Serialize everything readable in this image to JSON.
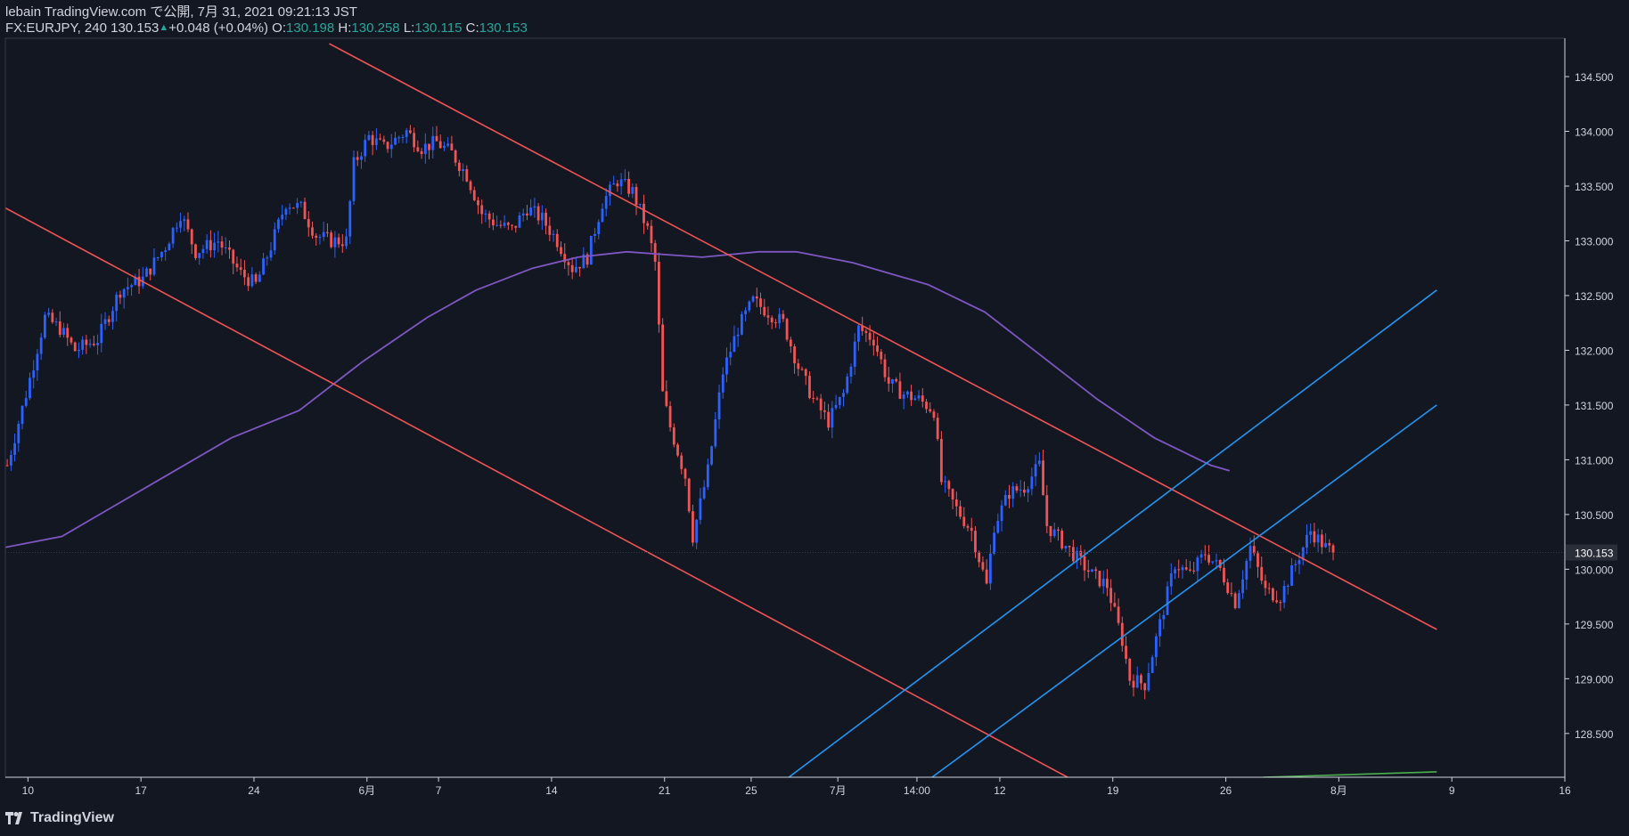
{
  "header": {
    "line1": "lebain TradingView.com で公開, 7月 31, 2021 09:21:13 JST",
    "symbol": "FX:EURJPY, 240",
    "last": "130.153",
    "change": "+0.048 (+0.04%)",
    "o_label": "O:",
    "o_value": "130.198",
    "h_label": "H:",
    "h_value": "130.258",
    "l_label": "L:",
    "l_value": "130.115",
    "c_label": "C:",
    "c_value": "130.153"
  },
  "brand": {
    "name": "TradingView",
    "logo_icon": "tradingview-logo-icon"
  },
  "colors": {
    "background": "#131722",
    "up_candle": "#2962ff",
    "down_candle": "#f05454",
    "grid": "#2a2e39",
    "axis_text": "#d1d4dc",
    "ma": "#7e57c2",
    "red_line": "#f05454",
    "blue_line": "#2196f3",
    "green_line": "#4caf50"
  },
  "chart_data": {
    "type": "candlestick",
    "title": "FX:EURJPY, 240",
    "ylim": [
      128.1,
      134.85
    ],
    "y_ticks": [
      128.5,
      129.0,
      129.5,
      130.0,
      130.5,
      131.0,
      131.5,
      132.0,
      132.5,
      133.0,
      133.5,
      134.0,
      134.5
    ],
    "y_tick_labels": [
      "128.500",
      "129.000",
      "129.500",
      "130.000",
      "130.500",
      "131.000",
      "131.500",
      "132.000",
      "132.500",
      "133.000",
      "133.500",
      "134.000",
      "134.500"
    ],
    "x_ticks": [
      {
        "label": "10",
        "bar": 6
      },
      {
        "label": "17",
        "bar": 36
      },
      {
        "label": "24",
        "bar": 66
      },
      {
        "label": "6月",
        "bar": 96
      },
      {
        "label": "7",
        "bar": 115
      },
      {
        "label": "14",
        "bar": 145
      },
      {
        "label": "21",
        "bar": 175
      },
      {
        "label": "25",
        "bar": 198
      },
      {
        "label": "7月",
        "bar": 221
      },
      {
        "label": "14:00",
        "bar": 242
      },
      {
        "label": "12",
        "bar": 264
      },
      {
        "label": "19",
        "bar": 294
      },
      {
        "label": "26",
        "bar": 324
      },
      {
        "label": "8月",
        "bar": 354
      },
      {
        "label": "9",
        "bar": 384
      },
      {
        "label": "16",
        "bar": 414
      }
    ],
    "last_price": 130.153,
    "last_price_label": "130.153",
    "price_path": [
      [
        0,
        130.95
      ],
      [
        5,
        131.6
      ],
      [
        10,
        132.3
      ],
      [
        14,
        132.2
      ],
      [
        18,
        132.0
      ],
      [
        24,
        132.1
      ],
      [
        30,
        132.55
      ],
      [
        36,
        132.65
      ],
      [
        42,
        132.95
      ],
      [
        46,
        133.25
      ],
      [
        50,
        132.9
      ],
      [
        56,
        133.0
      ],
      [
        62,
        132.7
      ],
      [
        66,
        132.6
      ],
      [
        70,
        132.95
      ],
      [
        74,
        133.35
      ],
      [
        78,
        133.3
      ],
      [
        82,
        133.05
      ],
      [
        86,
        133.0
      ],
      [
        90,
        133.0
      ],
      [
        92,
        133.7
      ],
      [
        96,
        133.95
      ],
      [
        100,
        133.85
      ],
      [
        106,
        134.0
      ],
      [
        110,
        133.85
      ],
      [
        114,
        133.9
      ],
      [
        118,
        133.8
      ],
      [
        122,
        133.6
      ],
      [
        126,
        133.25
      ],
      [
        130,
        133.15
      ],
      [
        134,
        133.1
      ],
      [
        138,
        133.3
      ],
      [
        142,
        133.2
      ],
      [
        146,
        133.0
      ],
      [
        150,
        132.75
      ],
      [
        154,
        132.85
      ],
      [
        158,
        133.35
      ],
      [
        162,
        133.55
      ],
      [
        166,
        133.45
      ],
      [
        170,
        133.1
      ],
      [
        172,
        132.8
      ],
      [
        174,
        131.6
      ],
      [
        176,
        131.3
      ],
      [
        180,
        130.85
      ],
      [
        182,
        130.3
      ],
      [
        186,
        130.9
      ],
      [
        190,
        131.8
      ],
      [
        194,
        132.2
      ],
      [
        198,
        132.45
      ],
      [
        202,
        132.35
      ],
      [
        206,
        132.25
      ],
      [
        210,
        131.85
      ],
      [
        214,
        131.55
      ],
      [
        218,
        131.35
      ],
      [
        222,
        131.6
      ],
      [
        226,
        132.2
      ],
      [
        230,
        132.1
      ],
      [
        234,
        131.7
      ],
      [
        238,
        131.6
      ],
      [
        242,
        131.55
      ],
      [
        246,
        131.45
      ],
      [
        248,
        130.8
      ],
      [
        252,
        130.55
      ],
      [
        256,
        130.35
      ],
      [
        260,
        129.85
      ],
      [
        262,
        130.4
      ],
      [
        266,
        130.7
      ],
      [
        270,
        130.75
      ],
      [
        274,
        130.95
      ],
      [
        276,
        130.4
      ],
      [
        280,
        130.25
      ],
      [
        284,
        130.1
      ],
      [
        288,
        129.95
      ],
      [
        292,
        129.85
      ],
      [
        296,
        129.35
      ],
      [
        298,
        129.0
      ],
      [
        302,
        128.95
      ],
      [
        306,
        129.5
      ],
      [
        310,
        130.05
      ],
      [
        314,
        129.95
      ],
      [
        318,
        130.15
      ],
      [
        322,
        130.0
      ],
      [
        326,
        129.7
      ],
      [
        330,
        130.2
      ],
      [
        334,
        129.8
      ],
      [
        338,
        129.75
      ],
      [
        342,
        130.05
      ],
      [
        346,
        130.35
      ],
      [
        350,
        130.2
      ],
      [
        352,
        130.15
      ]
    ],
    "series": [
      {
        "name": "MA",
        "type": "line",
        "points": [
          [
            0,
            130.2
          ],
          [
            15,
            130.3
          ],
          [
            30,
            130.6
          ],
          [
            45,
            130.9
          ],
          [
            60,
            131.2
          ],
          [
            78,
            131.45
          ],
          [
            95,
            131.9
          ],
          [
            112,
            132.3
          ],
          [
            125,
            132.55
          ],
          [
            140,
            132.75
          ],
          [
            152,
            132.85
          ],
          [
            165,
            132.9
          ],
          [
            185,
            132.85
          ],
          [
            200,
            132.9
          ],
          [
            210,
            132.9
          ],
          [
            225,
            132.8
          ],
          [
            245,
            132.6
          ],
          [
            260,
            132.35
          ],
          [
            275,
            131.95
          ],
          [
            290,
            131.55
          ],
          [
            305,
            131.2
          ],
          [
            320,
            130.95
          ],
          [
            325,
            130.9
          ]
        ]
      },
      {
        "name": "Upper downtrend",
        "type": "trendline",
        "points": [
          [
            86,
            134.8
          ],
          [
            380,
            129.45
          ]
        ]
      },
      {
        "name": "Lower downtrend",
        "type": "trendline",
        "points": [
          [
            0,
            133.3
          ],
          [
            282,
            128.1
          ]
        ]
      },
      {
        "name": "Upper uptrend",
        "type": "trendline",
        "points": [
          [
            208,
            128.1
          ],
          [
            380,
            132.55
          ]
        ]
      },
      {
        "name": "Lower uptrend",
        "type": "trendline",
        "points": [
          [
            246,
            128.1
          ],
          [
            380,
            131.5
          ]
        ]
      },
      {
        "name": "Green level",
        "type": "trendline",
        "points": [
          [
            334,
            128.1
          ],
          [
            380,
            128.15
          ]
        ]
      }
    ]
  }
}
